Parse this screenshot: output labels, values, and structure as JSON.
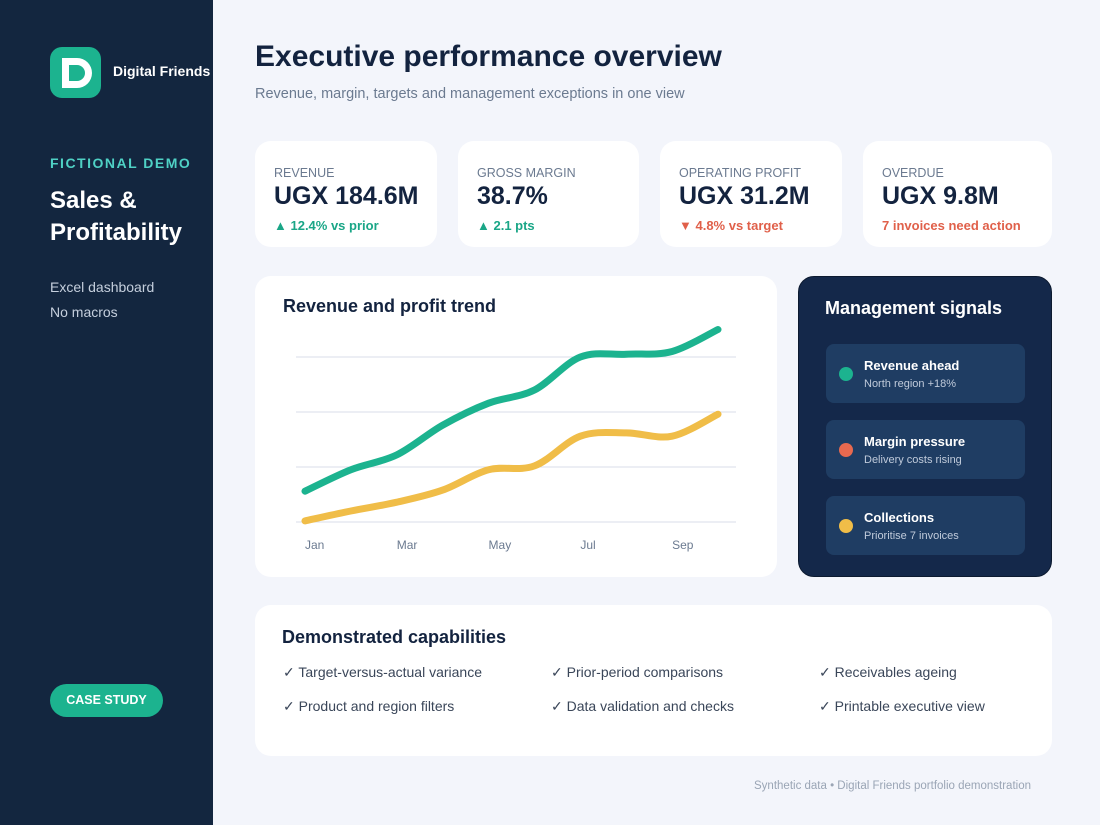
{
  "sidebar": {
    "brand": "Digital Friends",
    "eyebrow": "FICTIONAL DEMO",
    "title": "Sales & Profitability",
    "notes": [
      "Excel dashboard",
      "No macros"
    ],
    "button": "CASE STUDY"
  },
  "header": {
    "title": "Executive performance overview",
    "subtitle": "Revenue, margin, targets and management exceptions in one view"
  },
  "kpis": [
    {
      "label": "REVENUE",
      "value": "UGX 184.6M",
      "delta": "▲ 12.4% vs prior",
      "color": "#1aa687"
    },
    {
      "label": "GROSS MARGIN",
      "value": "38.7%",
      "delta": "▲ 2.1 pts",
      "color": "#1aa687"
    },
    {
      "label": "OPERATING PROFIT",
      "value": "UGX 31.2M",
      "delta": "▼ 4.8% vs target",
      "color": "#e0604a"
    },
    {
      "label": "OVERDUE",
      "value": "UGX 9.8M",
      "delta": "7 invoices need action",
      "color": "#e0604a"
    }
  ],
  "chart_data": {
    "type": "line",
    "title": "Revenue and profit trend",
    "categories": [
      "Jan",
      null,
      "Mar",
      null,
      "May",
      null,
      "Jul",
      null,
      "Sep",
      null
    ],
    "series": [
      {
        "color": "#1cb38f",
        "values": [
          0.56,
          0.95,
          1.22,
          1.76,
          2.16,
          2.4,
          3.0,
          3.05,
          3.1,
          3.5
        ]
      },
      {
        "color": "#f0bd48",
        "values": [
          0.02,
          0.2,
          0.36,
          0.58,
          0.95,
          1.02,
          1.56,
          1.62,
          1.56,
          1.96
        ]
      }
    ],
    "ylim": [
      0,
      3.6
    ],
    "yticks": [
      0,
      1,
      2,
      3
    ],
    "grid": true
  },
  "signals": {
    "title": "Management signals",
    "items": [
      {
        "title": "Revenue ahead",
        "detail": "North region +18%",
        "color": "#1cb38f"
      },
      {
        "title": "Margin pressure",
        "detail": "Delivery costs rising",
        "color": "#e8694f"
      },
      {
        "title": "Collections",
        "detail": "Prioritise 7 invoices",
        "color": "#f0bd48"
      }
    ]
  },
  "capabilities": {
    "title": "Demonstrated capabilities",
    "items": [
      "✓ Target-versus-actual variance",
      "✓ Prior-period comparisons",
      "✓ Receivables ageing",
      "✓ Product and region filters",
      "✓ Data validation and checks",
      "✓ Printable executive view"
    ]
  },
  "footer": "Synthetic data • Digital Friends portfolio demonstration"
}
